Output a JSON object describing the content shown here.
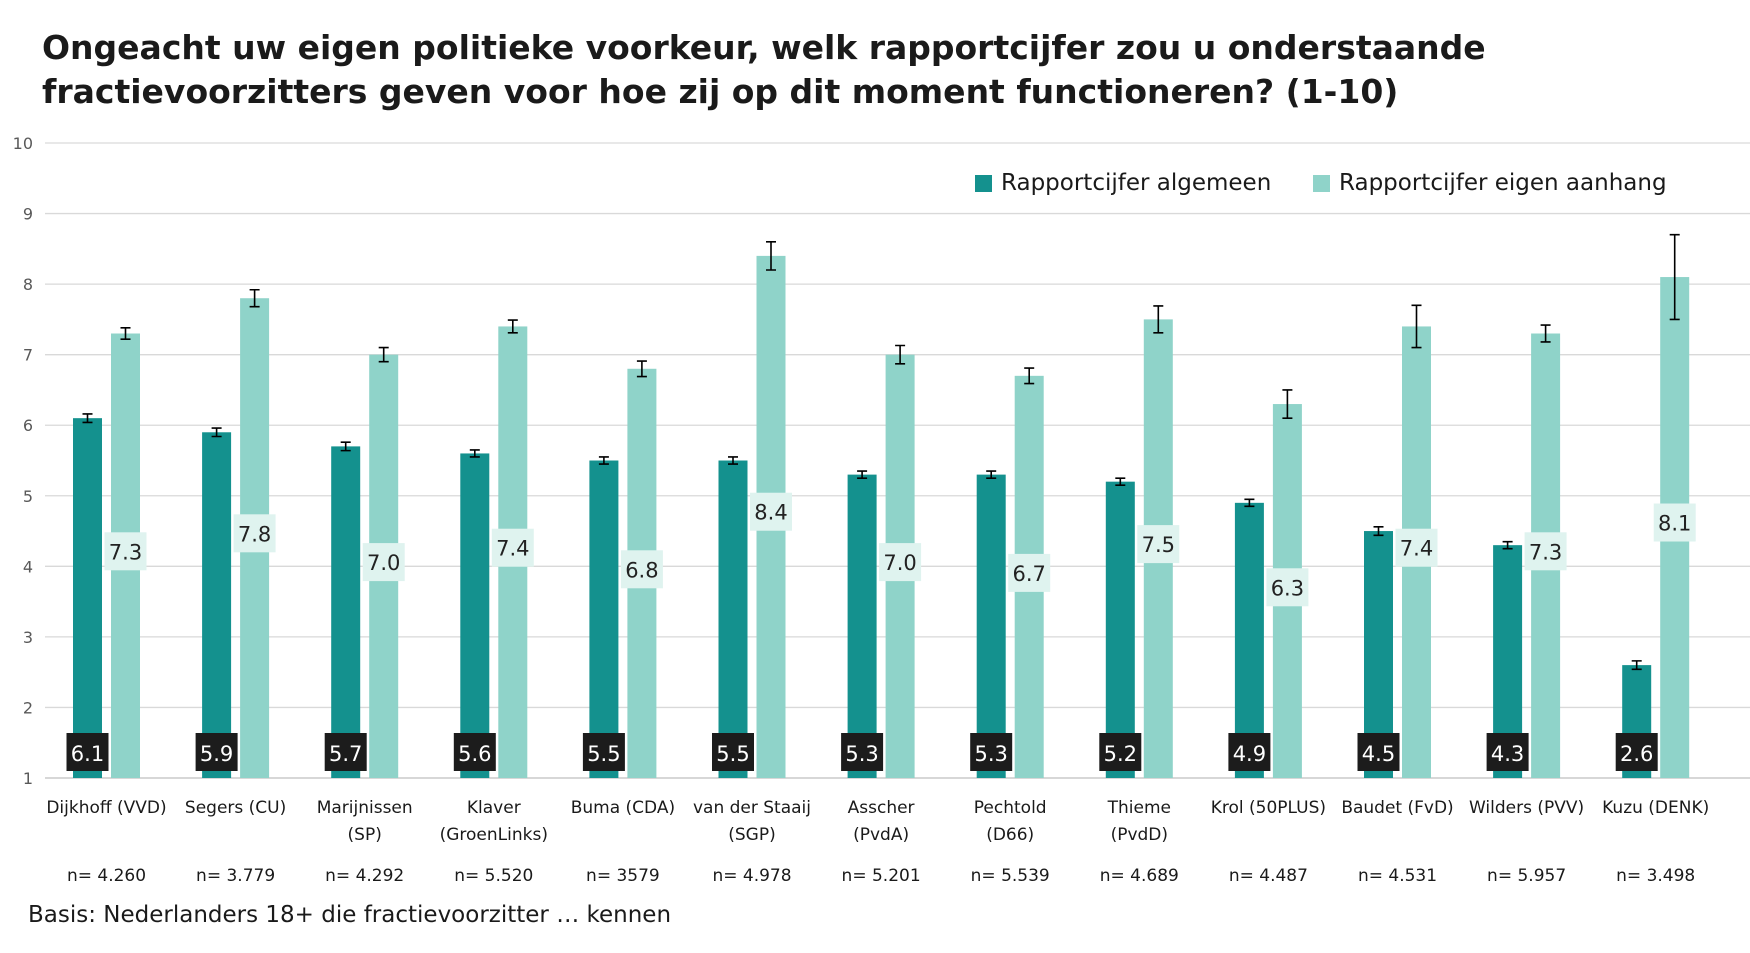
{
  "chart_data": {
    "type": "bar",
    "title": "Ongeacht uw eigen politieke voorkeur, welk rapportcijfer zou u onderstaande fractievoorzitters geven voor hoe zij op dit moment functioneren? (1-10)",
    "xlabel": "",
    "ylabel": "",
    "ylim": [
      1,
      10
    ],
    "yticks": [
      1,
      2,
      3,
      4,
      5,
      6,
      7,
      8,
      9,
      10
    ],
    "grid": true,
    "legend_position": "top-right",
    "categories": [
      [
        "Dijkhoff (VVD)"
      ],
      [
        "Segers (CU)"
      ],
      [
        "Marijnissen",
        "(SP)"
      ],
      [
        "Klaver",
        "(GroenLinks)"
      ],
      [
        "Buma (CDA)"
      ],
      [
        "van der Staaij",
        "(SGP)"
      ],
      [
        "Asscher",
        "(PvdA)"
      ],
      [
        "Pechtold",
        "(D66)"
      ],
      [
        "Thieme",
        "(PvdD)"
      ],
      [
        "Krol (50PLUS)"
      ],
      [
        "Baudet (FvD)"
      ],
      [
        "Wilders (PVV)"
      ],
      [
        "Kuzu (DENK)"
      ]
    ],
    "sample_sizes": [
      "n= 4.260",
      "n= 3.779",
      "n= 4.292",
      "n= 5.520",
      "n= 3579",
      "n= 4.978",
      "n= 5.201",
      "n= 5.539",
      "n= 4.689",
      "n= 4.487",
      "n= 4.531",
      "n= 5.957",
      "n= 3.498"
    ],
    "series": [
      {
        "name": "Rapportcijfer algemeen",
        "color": "#14918e",
        "values": [
          6.1,
          5.9,
          5.7,
          5.6,
          5.5,
          5.5,
          5.3,
          5.3,
          5.2,
          4.9,
          4.5,
          4.3,
          2.6
        ],
        "labels": [
          "6.1",
          "5.9",
          "5.7",
          "5.6",
          "5.5",
          "5.5",
          "5.3",
          "5.3",
          "5.2",
          "4.9",
          "4.5",
          "4.3",
          "2.6"
        ],
        "error": [
          0.06,
          0.06,
          0.06,
          0.05,
          0.05,
          0.05,
          0.05,
          0.05,
          0.05,
          0.05,
          0.06,
          0.05,
          0.06
        ]
      },
      {
        "name": "Rapportcijfer eigen aanhang",
        "color": "#8fd3c9",
        "values": [
          7.3,
          7.8,
          7.0,
          7.4,
          6.8,
          8.4,
          7.0,
          6.7,
          7.5,
          6.3,
          7.4,
          7.3,
          8.1
        ],
        "labels": [
          "7.3",
          "7.8",
          "7.0",
          "7.4",
          "6.8",
          "8.4",
          "7.0",
          "6.7",
          "7.5",
          "6.3",
          "7.4",
          "7.3",
          "8.1"
        ],
        "error": [
          0.08,
          0.12,
          0.1,
          0.09,
          0.11,
          0.2,
          0.13,
          0.11,
          0.19,
          0.2,
          0.3,
          0.12,
          0.6
        ]
      }
    ],
    "footnote": "Basis: Nederlanders 18+ die fractievoorzitter … kennen"
  }
}
